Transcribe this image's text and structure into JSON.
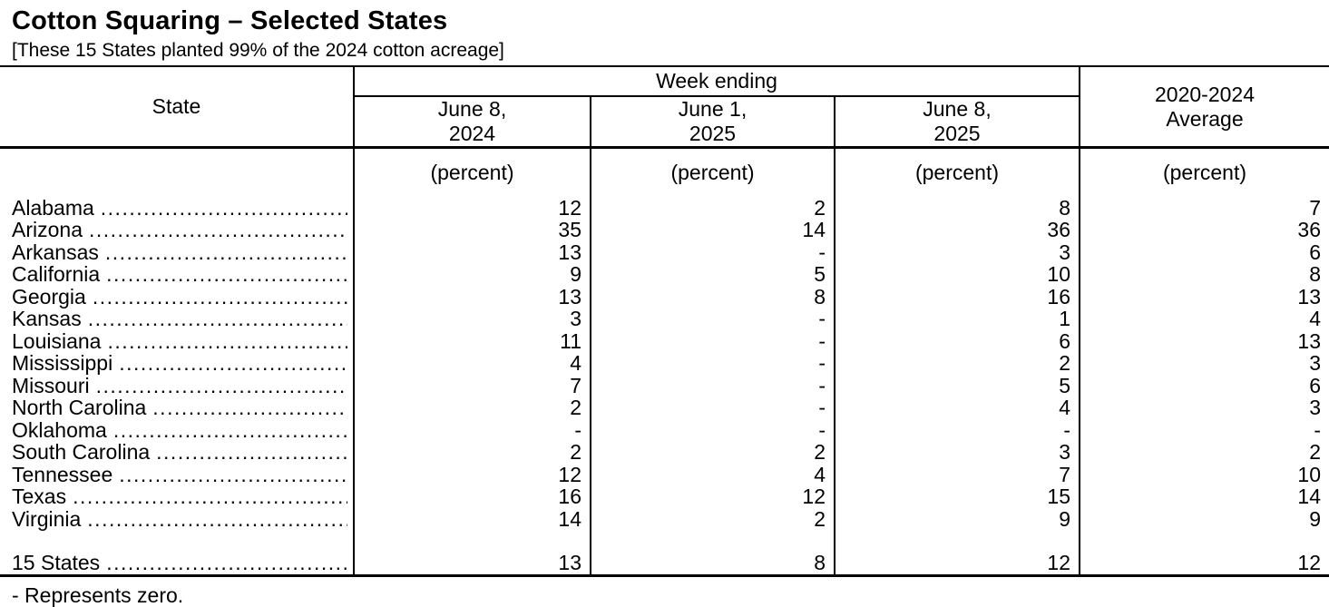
{
  "title": "Cotton Squaring – Selected States",
  "subtitle": "[These 15 States planted 99% of the 2024 cotton acreage]",
  "footnote": "- Represents zero.",
  "table": {
    "state_header": "State",
    "week_ending_header": "Week ending",
    "avg_header": {
      "line1": "2020-2024",
      "line2": "Average"
    },
    "week_columns": [
      {
        "line1": "June 8,",
        "line2": "2024"
      },
      {
        "line1": "June 1,",
        "line2": "2025"
      },
      {
        "line1": "June 8,",
        "line2": "2025"
      }
    ],
    "unit_label": "(percent)",
    "rows": [
      {
        "state": "Alabama",
        "values": [
          "12",
          "2",
          "8",
          "7"
        ]
      },
      {
        "state": "Arizona",
        "values": [
          "35",
          "14",
          "36",
          "36"
        ]
      },
      {
        "state": "Arkansas",
        "values": [
          "13",
          "-",
          "3",
          "6"
        ]
      },
      {
        "state": "California",
        "values": [
          "9",
          "5",
          "10",
          "8"
        ]
      },
      {
        "state": "Georgia",
        "values": [
          "13",
          "8",
          "16",
          "13"
        ]
      },
      {
        "state": "Kansas",
        "values": [
          "3",
          "-",
          "1",
          "4"
        ]
      },
      {
        "state": "Louisiana",
        "values": [
          "11",
          "-",
          "6",
          "13"
        ]
      },
      {
        "state": "Mississippi",
        "values": [
          "4",
          "-",
          "2",
          "3"
        ]
      },
      {
        "state": "Missouri",
        "values": [
          "7",
          "-",
          "5",
          "6"
        ]
      },
      {
        "state": "North Carolina",
        "values": [
          "2",
          "-",
          "4",
          "3"
        ]
      },
      {
        "state": "Oklahoma",
        "values": [
          "-",
          "-",
          "-",
          "-"
        ]
      },
      {
        "state": "South Carolina",
        "values": [
          "2",
          "2",
          "3",
          "2"
        ]
      },
      {
        "state": "Tennessee",
        "values": [
          "12",
          "4",
          "7",
          "10"
        ]
      },
      {
        "state": "Texas",
        "values": [
          "16",
          "12",
          "15",
          "14"
        ]
      },
      {
        "state": "Virginia",
        "values": [
          "14",
          "2",
          "9",
          "9"
        ]
      }
    ],
    "total_row": {
      "state": "15 States",
      "values": [
        "13",
        "8",
        "12",
        "12"
      ]
    }
  },
  "chart_data": {
    "type": "table",
    "title": "Cotton Squaring – Selected States",
    "columns": [
      "State",
      "June 8, 2024",
      "June 1, 2025",
      "June 8, 2025",
      "2020-2024 Average"
    ],
    "unit": "percent",
    "zero_symbol": "-"
  }
}
